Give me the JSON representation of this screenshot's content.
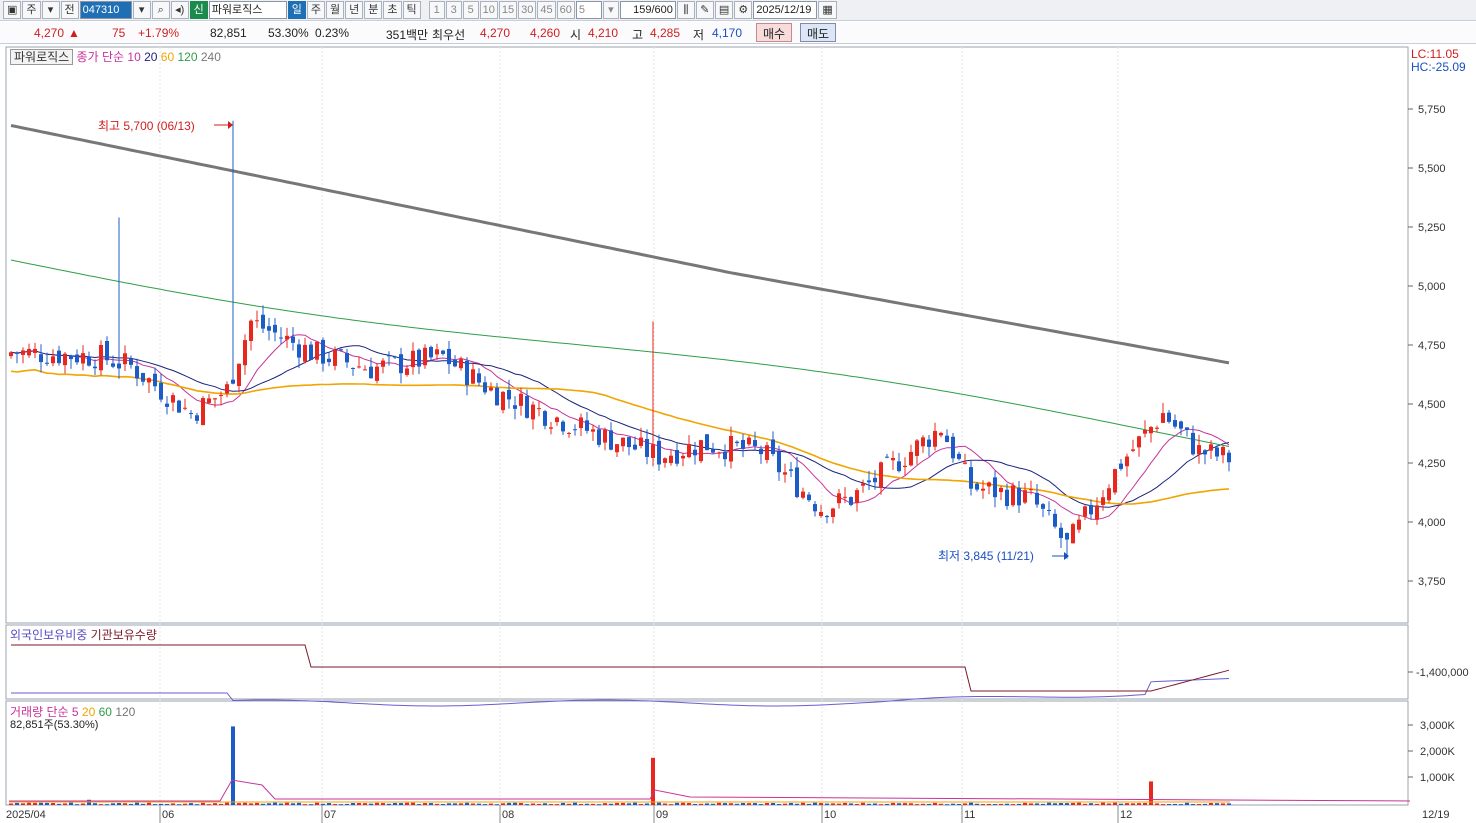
{
  "toolbar": {
    "period_label": "주",
    "prev_label": "전",
    "code": "047310",
    "badge": "신",
    "stock_name": "파워로직스",
    "tabs": [
      "일",
      "주",
      "월",
      "년",
      "분",
      "초",
      "틱"
    ],
    "intervals": [
      "1",
      "3",
      "5",
      "10",
      "15",
      "30",
      "45",
      "60"
    ],
    "custom_interval": "5",
    "count": "159/600",
    "date": "2025/12/19"
  },
  "info": {
    "price": "4,270",
    "change": "75",
    "change_pct": "+1.79%",
    "volume": "82,851",
    "vol_ratio": "53.30%",
    "turnover": "0.23%",
    "trade_value": "351백만",
    "best_label": "최우선",
    "ask": "4,270",
    "bid": "4,260",
    "open_label": "시",
    "open": "4,210",
    "high_label": "고",
    "high": "4,285",
    "low_label": "저",
    "low": "4,170",
    "buy_label": "매수",
    "sell_label": "매도"
  },
  "legend": {
    "price_tag": "파워로직스",
    "ma_prefix": "종가 단순",
    "ma_periods": [
      "10",
      "20",
      "60",
      "120",
      "240"
    ],
    "lc": "LC:11.05",
    "hc": "HC:-25.09",
    "foreign_label": "외국인보유비중",
    "inst_label": "기관보유수량",
    "vol_prefix": "거래량 단순",
    "vol_periods": [
      "5",
      "20",
      "60",
      "120"
    ],
    "vol_value": "82,851주(53.30%)"
  },
  "annotations": {
    "high": "최고 5,700 (06/13)",
    "low": "최저 3,845 (11/21)"
  },
  "colors": {
    "up": "#e8281e",
    "down": "#1c5cc8",
    "ma10": "#c8329a",
    "ma20": "#1a237e",
    "ma60": "#f0a500",
    "ma120": "#2e9e47",
    "ma240": "#777777"
  },
  "chart_data": {
    "type": "candlestick",
    "price_ticks": [
      "5,750",
      "5,500",
      "5,250",
      "5,000",
      "4,750",
      "4,500",
      "4,250",
      "4,000",
      "3,750"
    ],
    "inst_tick": "-1,400,000",
    "vol_ticks": [
      "3,000K",
      "2,000K",
      "1,000K"
    ],
    "x_labels": [
      "2025/04",
      "06",
      "07",
      "08",
      "09",
      "10",
      "11",
      "12",
      "12/19"
    ]
  }
}
